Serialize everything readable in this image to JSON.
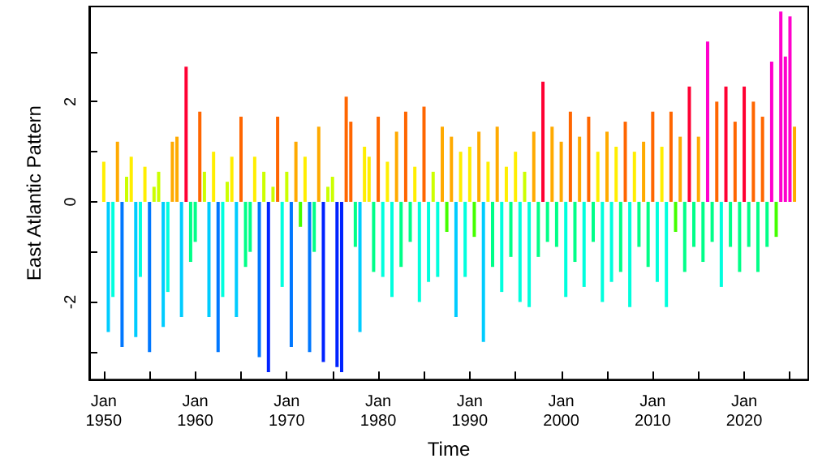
{
  "chart_data": {
    "type": "bar",
    "xlabel": "Time",
    "ylabel": "East Atlantic Pattern",
    "xlim": [
      "1948-06",
      "2027-01"
    ],
    "ylim": [
      -3.55,
      3.9
    ],
    "xticks": [
      {
        "value": "1950-01",
        "label": "Jan\n1950"
      },
      {
        "value": "1955-01",
        "label": null
      },
      {
        "value": "1960-01",
        "label": "Jan\n1960"
      },
      {
        "value": "1965-01",
        "label": null
      },
      {
        "value": "1970-01",
        "label": "Jan\n1970"
      },
      {
        "value": "1975-01",
        "label": null
      },
      {
        "value": "1980-01",
        "label": "Jan\n1980"
      },
      {
        "value": "1985-01",
        "label": null
      },
      {
        "value": "1990-01",
        "label": "Jan\n1990"
      },
      {
        "value": "1995-01",
        "label": null
      },
      {
        "value": "2000-01",
        "label": "Jan\n2000"
      },
      {
        "value": "2005-01",
        "label": null
      },
      {
        "value": "2010-01",
        "label": "Jan\n2010"
      },
      {
        "value": "2015-01",
        "label": null
      },
      {
        "value": "2020-01",
        "label": "Jan\n2020"
      },
      {
        "value": "2025-01",
        "label": null
      }
    ],
    "yticks": [
      {
        "value": -3,
        "label": null
      },
      -2,
      {
        "value": -1,
        "label": null
      },
      0,
      {
        "value": 1,
        "label": null
      },
      2,
      {
        "value": 3,
        "label": null
      }
    ],
    "x": [
      "1950-01",
      "1950-07",
      "1951-01",
      "1951-07",
      "1952-01",
      "1952-07",
      "1953-01",
      "1953-07",
      "1954-01",
      "1954-07",
      "1955-01",
      "1955-07",
      "1956-01",
      "1956-07",
      "1957-01",
      "1957-07",
      "1958-01",
      "1958-07",
      "1959-01",
      "1959-07",
      "1960-01",
      "1960-07",
      "1961-01",
      "1961-07",
      "1962-01",
      "1962-07",
      "1963-01",
      "1963-07",
      "1964-01",
      "1964-07",
      "1965-01",
      "1965-07",
      "1966-01",
      "1966-07",
      "1967-01",
      "1967-07",
      "1968-01",
      "1968-07",
      "1969-01",
      "1969-07",
      "1970-01",
      "1970-07",
      "1971-01",
      "1971-07",
      "1972-01",
      "1972-07",
      "1973-01",
      "1973-07",
      "1974-01",
      "1974-07",
      "1975-01",
      "1975-07",
      "1976-01",
      "1976-07",
      "1977-01",
      "1977-07",
      "1978-01",
      "1978-07",
      "1979-01",
      "1979-07",
      "1980-01",
      "1980-07",
      "1981-01",
      "1981-07",
      "1982-01",
      "1982-07",
      "1983-01",
      "1983-07",
      "1984-01",
      "1984-07",
      "1985-01",
      "1985-07",
      "1986-01",
      "1986-07",
      "1987-01",
      "1987-07",
      "1988-01",
      "1988-07",
      "1989-01",
      "1989-07",
      "1990-01",
      "1990-07",
      "1991-01",
      "1991-07",
      "1992-01",
      "1992-07",
      "1993-01",
      "1993-07",
      "1994-01",
      "1994-07",
      "1995-01",
      "1995-07",
      "1996-01",
      "1996-07",
      "1997-01",
      "1997-07",
      "1998-01",
      "1998-07",
      "1999-01",
      "1999-07",
      "2000-01",
      "2000-07",
      "2001-01",
      "2001-07",
      "2002-01",
      "2002-07",
      "2003-01",
      "2003-07",
      "2004-01",
      "2004-07",
      "2005-01",
      "2005-07",
      "2006-01",
      "2006-07",
      "2007-01",
      "2007-07",
      "2008-01",
      "2008-07",
      "2009-01",
      "2009-07",
      "2010-01",
      "2010-07",
      "2011-01",
      "2011-07",
      "2012-01",
      "2012-07",
      "2013-01",
      "2013-07",
      "2014-01",
      "2014-07",
      "2015-01",
      "2015-07",
      "2016-01",
      "2016-07",
      "2017-01",
      "2017-07",
      "2018-01",
      "2018-07",
      "2019-01",
      "2019-07",
      "2020-01",
      "2020-07",
      "2021-01",
      "2021-07",
      "2022-01",
      "2022-07",
      "2023-01",
      "2023-07",
      "2024-01",
      "2024-07",
      "2025-01",
      "2025-07"
    ],
    "values": [
      0.8,
      -2.6,
      -1.9,
      1.2,
      -2.9,
      0.5,
      0.9,
      -2.7,
      -1.5,
      0.7,
      -3.0,
      0.3,
      0.6,
      -2.5,
      -1.8,
      1.2,
      1.3,
      -2.3,
      2.7,
      -1.2,
      -0.8,
      1.8,
      0.6,
      -2.3,
      1.0,
      -3.0,
      -1.9,
      0.4,
      0.9,
      -2.3,
      1.7,
      -1.3,
      -1.0,
      0.9,
      -3.1,
      0.6,
      -3.4,
      0.3,
      1.7,
      -1.7,
      0.6,
      -2.9,
      1.2,
      -0.5,
      0.9,
      -3.0,
      -1.0,
      1.5,
      -3.2,
      0.3,
      0.5,
      -3.3,
      -3.4,
      2.1,
      1.6,
      -0.9,
      -2.6,
      1.1,
      0.9,
      -1.4,
      1.7,
      -1.5,
      0.8,
      -1.9,
      1.4,
      -1.3,
      1.8,
      -0.8,
      0.7,
      -2.0,
      1.9,
      -1.6,
      0.6,
      -1.5,
      1.5,
      -0.6,
      1.3,
      -2.3,
      1.0,
      -1.5,
      1.1,
      -0.7,
      1.4,
      -2.8,
      0.8,
      -1.3,
      1.5,
      -1.8,
      0.7,
      -1.1,
      1.0,
      -2.0,
      0.6,
      -2.1,
      1.4,
      -1.1,
      2.4,
      -0.8,
      1.5,
      -0.9,
      1.2,
      -1.9,
      1.8,
      -1.2,
      1.3,
      -1.7,
      1.7,
      -0.8,
      1.0,
      -2.0,
      1.4,
      -1.6,
      1.1,
      -1.4,
      1.6,
      -2.1,
      1.0,
      -0.9,
      1.2,
      -1.3,
      1.8,
      -1.6,
      1.1,
      -2.1,
      1.8,
      -0.6,
      1.3,
      -1.4,
      2.3,
      -0.9,
      1.3,
      -1.2,
      3.2,
      -0.8,
      2.0,
      -1.7,
      2.3,
      -0.9,
      1.6,
      -1.4,
      2.3,
      -0.9,
      2.0,
      -1.4,
      1.7,
      -0.9,
      2.8,
      -0.7,
      3.8,
      2.9,
      3.7,
      1.5
    ],
    "colors": [
      "#ffee00",
      "#00ccff",
      "#00ffdd",
      "#ffaa00",
      "#0077ff",
      "#ccff00",
      "#ffee00",
      "#00ccff",
      "#00ffdd",
      "#ffee00",
      "#0077ff",
      "#ccff00",
      "#ccff00",
      "#00ccff",
      "#00ffdd",
      "#ffaa00",
      "#ffaa00",
      "#00ccff",
      "#ff0033",
      "#00ff88",
      "#00ff88",
      "#ff6600",
      "#ccff00",
      "#00ccff",
      "#ffee00",
      "#0077ff",
      "#00ffdd",
      "#ccff00",
      "#ffee00",
      "#00ccff",
      "#ff6600",
      "#00ff88",
      "#00ff88",
      "#ffee00",
      "#0077ff",
      "#ccff00",
      "#0022ff",
      "#ccff00",
      "#ff6600",
      "#00ffdd",
      "#ccff00",
      "#0077ff",
      "#ffaa00",
      "#44ff00",
      "#ffee00",
      "#0077ff",
      "#00ff88",
      "#ffaa00",
      "#0022ff",
      "#ccff00",
      "#ccff00",
      "#0022ff",
      "#0022ff",
      "#ff6600",
      "#ff6600",
      "#00ff88",
      "#00ccff",
      "#ffee00",
      "#ffee00",
      "#00ff88",
      "#ff6600",
      "#00ffdd",
      "#ffee00",
      "#00ffdd",
      "#ffaa00",
      "#00ff88",
      "#ff6600",
      "#00ff88",
      "#ffee00",
      "#00ffdd",
      "#ff6600",
      "#00ffdd",
      "#ccff00",
      "#00ffdd",
      "#ffaa00",
      "#44ff00",
      "#ffaa00",
      "#00ccff",
      "#ffee00",
      "#00ffdd",
      "#ffee00",
      "#44ff00",
      "#ffaa00",
      "#00ccff",
      "#ffee00",
      "#00ff88",
      "#ffaa00",
      "#00ffdd",
      "#ffee00",
      "#00ff88",
      "#ffee00",
      "#00ffdd",
      "#ccff00",
      "#00ffdd",
      "#ffaa00",
      "#00ff88",
      "#ff0033",
      "#00ff88",
      "#ffaa00",
      "#00ff88",
      "#ffaa00",
      "#00ffdd",
      "#ff6600",
      "#00ff88",
      "#ffaa00",
      "#00ffdd",
      "#ff6600",
      "#00ff88",
      "#ffee00",
      "#00ffdd",
      "#ffaa00",
      "#00ffdd",
      "#ffee00",
      "#00ff88",
      "#ff6600",
      "#00ffdd",
      "#ffee00",
      "#00ff88",
      "#ffaa00",
      "#00ff88",
      "#ff6600",
      "#00ffdd",
      "#ffee00",
      "#00ffdd",
      "#ff6600",
      "#44ff00",
      "#ffaa00",
      "#00ff88",
      "#ff0033",
      "#00ff88",
      "#ffaa00",
      "#00ff88",
      "#ff00cc",
      "#00ff88",
      "#ff6600",
      "#00ffdd",
      "#ff0033",
      "#00ff88",
      "#ff6600",
      "#00ff88",
      "#ff0033",
      "#00ff88",
      "#ff6600",
      "#00ff88",
      "#ff6600",
      "#00ff88",
      "#ff00cc",
      "#44ff00",
      "#ff00cc",
      "#ff00cc",
      "#ff00cc",
      "#ffaa00"
    ]
  }
}
